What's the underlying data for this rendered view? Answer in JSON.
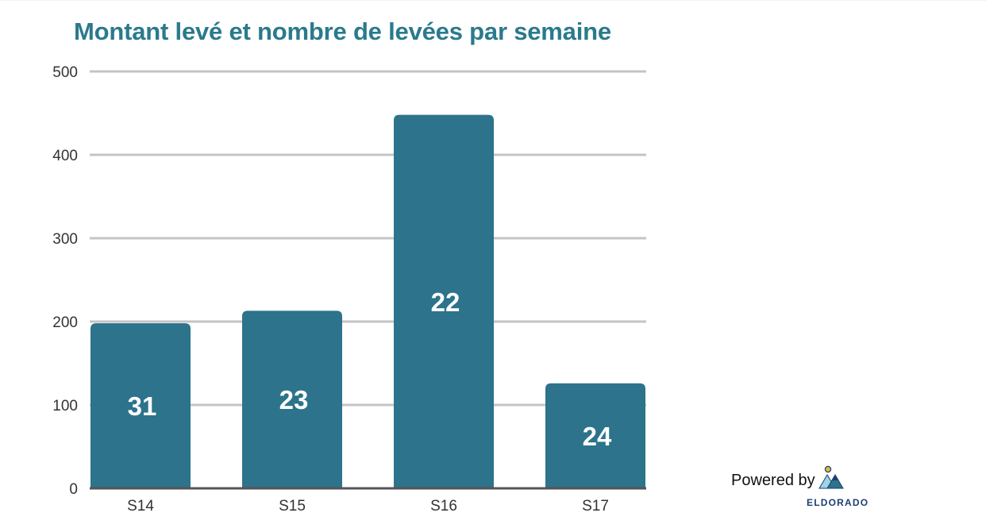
{
  "chart_data": {
    "type": "bar",
    "title": "Montant levé et nombre de levées par semaine",
    "categories": [
      "S14",
      "S15",
      "S16",
      "S17"
    ],
    "values": [
      198,
      213,
      448,
      126
    ],
    "data_labels": [
      "31",
      "23",
      "22",
      "24"
    ],
    "ylim": [
      0,
      500
    ],
    "yticks": [
      0,
      100,
      200,
      300,
      400,
      500
    ],
    "xlabel": "",
    "ylabel": "",
    "grid": true,
    "legend": "none",
    "colors": {
      "bar": "#2c738b",
      "title": "#2a7a8c",
      "grid": "#c4c4c4",
      "axis": "#555555"
    }
  },
  "branding": {
    "powered_by": "Powered by",
    "name": "ELDORADO",
    "icon": "eldorado-mountain-logo",
    "name_color": "#1d3f73",
    "sun_color": "#e0b93a"
  }
}
